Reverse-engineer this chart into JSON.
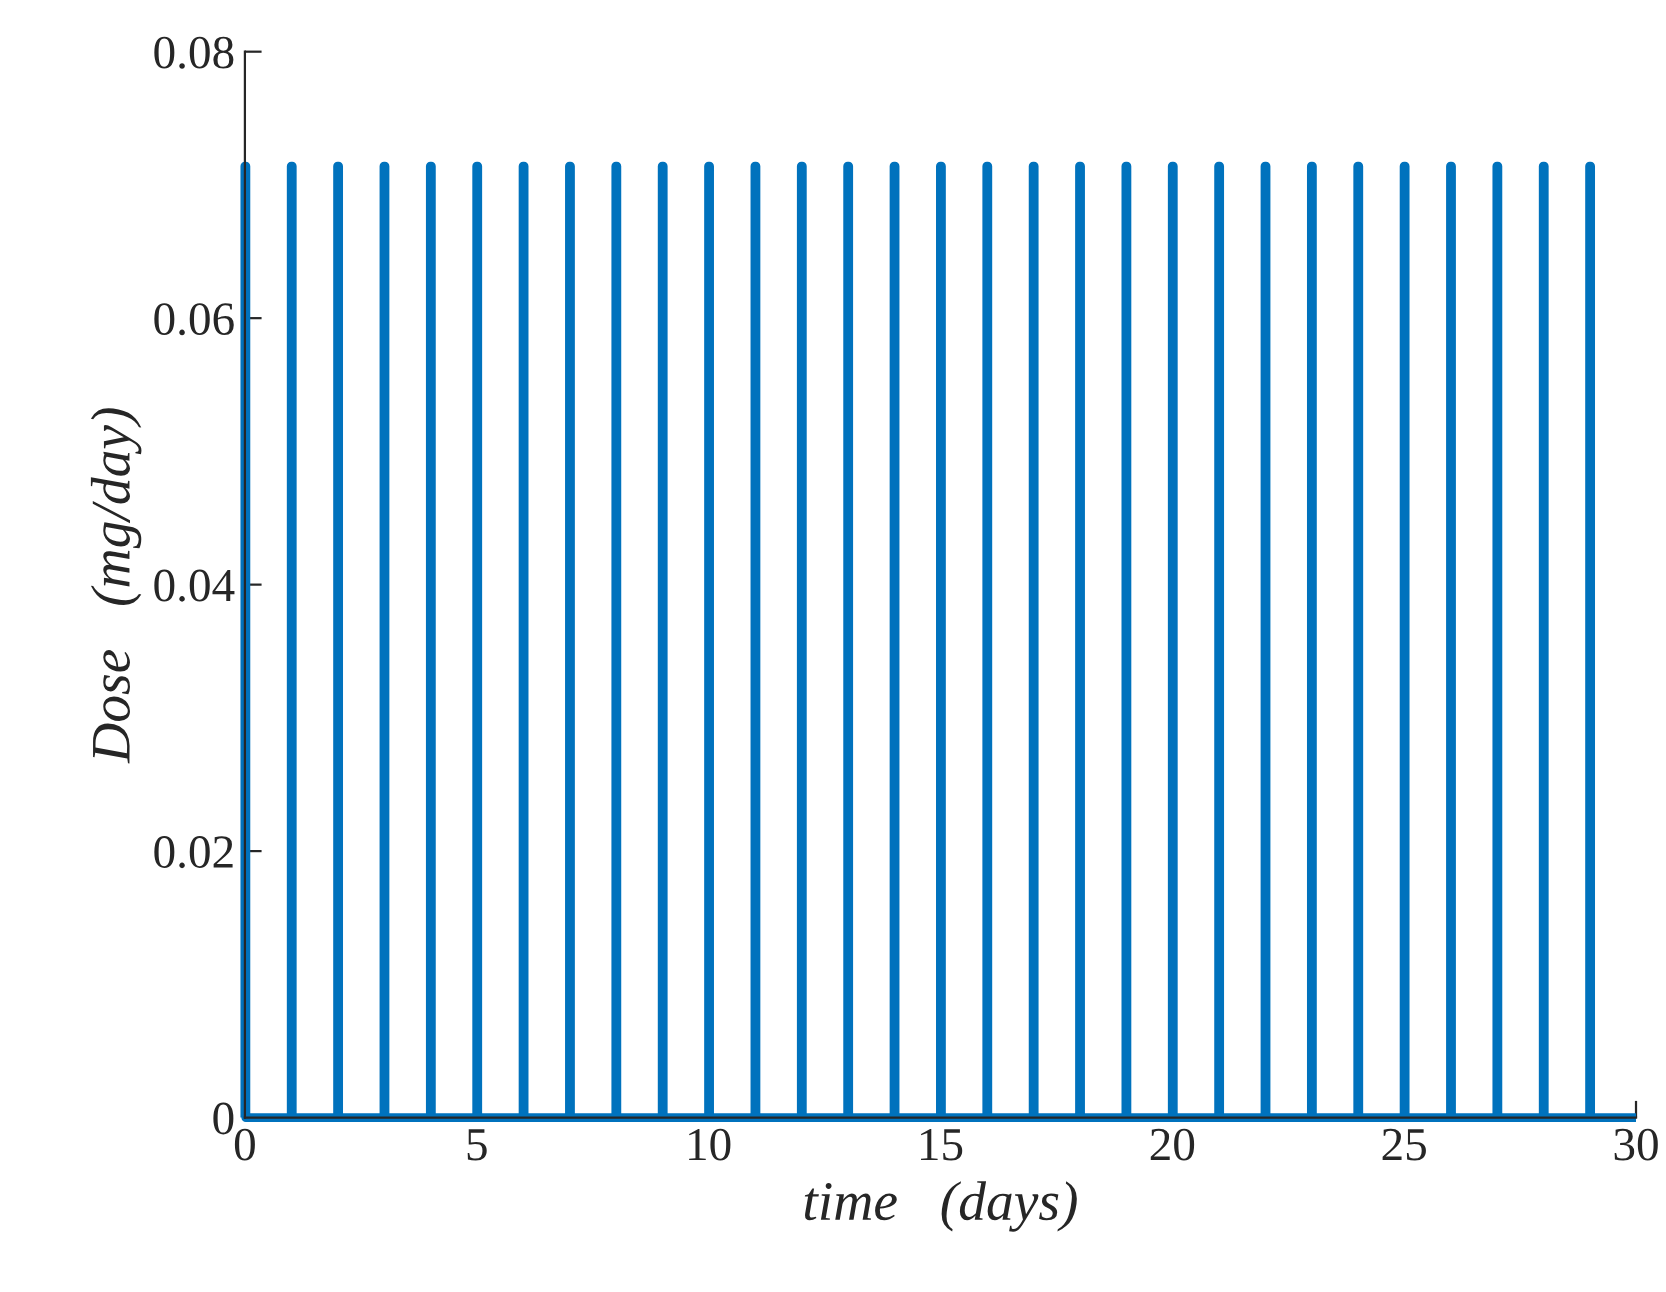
{
  "chart_data": {
    "type": "line",
    "xlabel": "time   (days)",
    "ylabel": "Dose   (mg/day)",
    "xlim": [
      0,
      30
    ],
    "ylim": [
      0,
      0.08
    ],
    "xticks": [
      0,
      5,
      10,
      15,
      20,
      25,
      30
    ],
    "yticks": [
      0,
      0.02,
      0.04,
      0.06,
      0.08
    ],
    "grid": false,
    "marker": "none",
    "line_style": "solid",
    "series": [
      {
        "color": "#0072bd",
        "x": [
          0,
          0,
          0.02,
          0.02,
          1,
          1,
          1.02,
          1.02,
          2,
          2,
          2.02,
          2.02,
          3,
          3,
          3.02,
          3.02,
          4,
          4,
          4.02,
          4.02,
          5,
          5,
          5.02,
          5.02,
          6,
          6,
          6.02,
          6.02,
          7,
          7,
          7.02,
          7.02,
          8,
          8,
          8.02,
          8.02,
          9,
          9,
          9.02,
          9.02,
          10,
          10,
          10.02,
          10.02,
          11,
          11,
          11.02,
          11.02,
          12,
          12,
          12.02,
          12.02,
          13,
          13,
          13.02,
          13.02,
          14,
          14,
          14.02,
          14.02,
          15,
          15,
          15.02,
          15.02,
          16,
          16,
          16.02,
          16.02,
          17,
          17,
          17.02,
          17.02,
          18,
          18,
          18.02,
          18.02,
          19,
          19,
          19.02,
          19.02,
          20,
          20,
          20.02,
          20.02,
          21,
          21,
          21.02,
          21.02,
          22,
          22,
          22.02,
          22.02,
          23,
          23,
          23.02,
          23.02,
          24,
          24,
          24.02,
          24.02,
          25,
          25,
          25.02,
          25.02,
          26,
          26,
          26.02,
          26.02,
          27,
          27,
          27.02,
          27.02,
          28,
          28,
          28.02,
          28.02,
          29,
          29,
          29.02,
          29.02,
          30
        ],
        "values": [
          0,
          0.0714,
          0.0714,
          0,
          0,
          0.0714,
          0.0714,
          0,
          0,
          0.0714,
          0.0714,
          0,
          0,
          0.0714,
          0.0714,
          0,
          0,
          0.0714,
          0.0714,
          0,
          0,
          0.0714,
          0.0714,
          0,
          0,
          0.0714,
          0.0714,
          0,
          0,
          0.0714,
          0.0714,
          0,
          0,
          0.0714,
          0.0714,
          0,
          0,
          0.0714,
          0.0714,
          0,
          0,
          0.0714,
          0.0714,
          0,
          0,
          0.0714,
          0.0714,
          0,
          0,
          0.0714,
          0.0714,
          0,
          0,
          0.0714,
          0.0714,
          0,
          0,
          0.0714,
          0.0714,
          0,
          0,
          0.0714,
          0.0714,
          0,
          0,
          0.0714,
          0.0714,
          0,
          0,
          0.0714,
          0.0714,
          0,
          0,
          0.0714,
          0.0714,
          0,
          0,
          0.0714,
          0.0714,
          0,
          0,
          0.0714,
          0.0714,
          0,
          0,
          0.0714,
          0.0714,
          0,
          0,
          0.0714,
          0.0714,
          0,
          0,
          0.0714,
          0.0714,
          0,
          0,
          0.0714,
          0.0714,
          0,
          0,
          0.0714,
          0.0714,
          0,
          0,
          0.0714,
          0.0714,
          0,
          0,
          0.0714,
          0.0714,
          0,
          0,
          0.0714,
          0.0714,
          0,
          0,
          0.0714,
          0.0714,
          0,
          0
        ]
      }
    ]
  }
}
